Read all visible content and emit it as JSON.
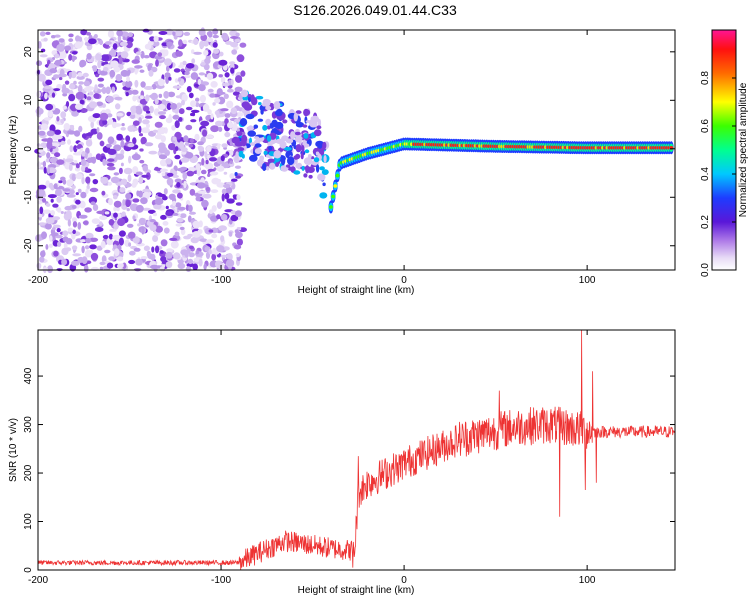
{
  "title": "S126.2026.049.01.44.C33",
  "colors": {
    "snr_line": "#ee3333",
    "axis": "#000000"
  },
  "chart_data": [
    {
      "type": "heatmap",
      "title": "S126.2026.049.01.44.C33",
      "xlabel": "Height of straight line (km)",
      "ylabel": "Frequency (Hz)",
      "xlim": [
        -200,
        148
      ],
      "ylim": [
        -25,
        24.5
      ],
      "xticks": [
        -200,
        -100,
        0,
        100
      ],
      "xtick_labels": [
        "-200",
        "-100",
        "0",
        "100"
      ],
      "yticks": [
        20,
        10,
        0,
        -10,
        -20
      ],
      "ytick_labels": [
        "20",
        "10",
        "0",
        "-10",
        "-20"
      ],
      "colorbar": {
        "label": "Normalized spectral amplitude",
        "range": [
          0,
          1
        ],
        "ticks": [
          0.0,
          0.2,
          0.4,
          0.6,
          0.8
        ],
        "tick_labels": [
          "0.0",
          "0.2",
          "0.4",
          "0.6",
          "0.8"
        ]
      },
      "description_points": {
        "noise_region_x": [
          -200,
          -92
        ],
        "ridge": [
          {
            "x": -90,
            "f": 5
          },
          {
            "x": -75,
            "f": 3
          },
          {
            "x": -60,
            "f": 2
          },
          {
            "x": -50,
            "f": 1
          },
          {
            "x": -42,
            "f": -4
          },
          {
            "x": -40,
            "f": -12
          },
          {
            "x": -35,
            "f": -3
          },
          {
            "x": -20,
            "f": -1
          },
          {
            "x": -10,
            "f": 0
          },
          {
            "x": 0,
            "f": 1
          },
          {
            "x": 50,
            "f": 0.5
          },
          {
            "x": 100,
            "f": 0.2
          },
          {
            "x": 148,
            "f": 0.2
          }
        ]
      }
    },
    {
      "type": "line",
      "xlabel": "Height of straight line (km)",
      "ylabel": "SNR (10 * v/v)",
      "xlim": [
        -200,
        148
      ],
      "ylim": [
        0,
        495
      ],
      "xticks": [
        -200,
        -100,
        0,
        100
      ],
      "xtick_labels": [
        "-200",
        "-100",
        "0",
        "100"
      ],
      "yticks": [
        0,
        100,
        200,
        300,
        400
      ],
      "ytick_labels": [
        "0",
        "100",
        "200",
        "300",
        "400"
      ],
      "trend": [
        {
          "x": -200,
          "y": 15
        },
        {
          "x": -90,
          "y": 15
        },
        {
          "x": -80,
          "y": 35
        },
        {
          "x": -65,
          "y": 60
        },
        {
          "x": -40,
          "y": 45
        },
        {
          "x": -27,
          "y": 40
        },
        {
          "x": -25,
          "y": 160
        },
        {
          "x": -20,
          "y": 180
        },
        {
          "x": 0,
          "y": 220
        },
        {
          "x": 30,
          "y": 270
        },
        {
          "x": 60,
          "y": 295
        },
        {
          "x": 80,
          "y": 300
        },
        {
          "x": 95,
          "y": 290
        },
        {
          "x": 103,
          "y": 285
        },
        {
          "x": 148,
          "y": 285
        }
      ],
      "spikes": [
        {
          "x": -28,
          "y": 5
        },
        {
          "x": -25,
          "y": 235
        },
        {
          "x": -3,
          "y": 190
        },
        {
          "x": 52,
          "y": 370
        },
        {
          "x": 85,
          "y": 110
        },
        {
          "x": 97,
          "y": 500
        },
        {
          "x": 99,
          "y": 165
        },
        {
          "x": 103,
          "y": 410
        },
        {
          "x": 105,
          "y": 180
        }
      ]
    }
  ]
}
